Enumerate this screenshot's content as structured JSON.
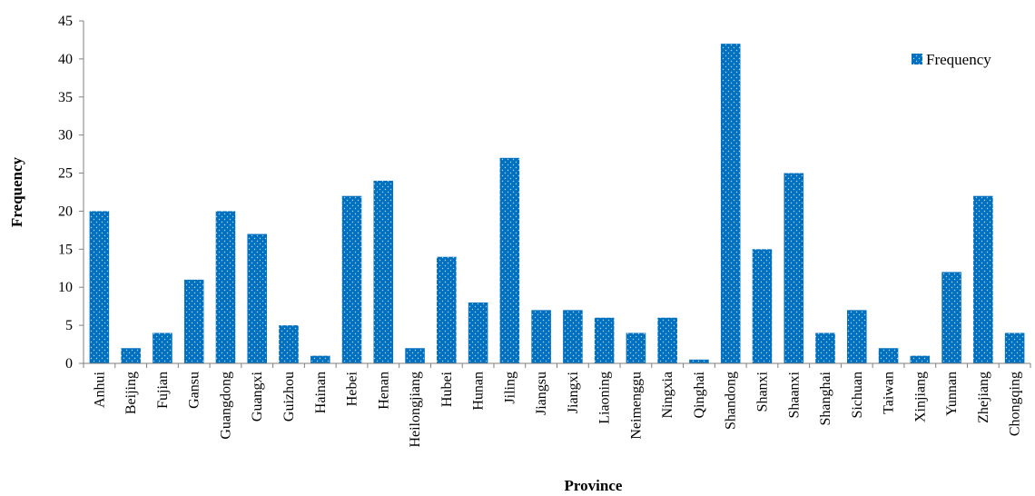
{
  "chart_data": {
    "type": "bar",
    "title": "",
    "xlabel": "Province",
    "ylabel": "Frequency",
    "ylim": [
      0,
      45
    ],
    "yticks": [
      0,
      5,
      10,
      15,
      20,
      25,
      30,
      35,
      40,
      45
    ],
    "grid": false,
    "legend_position": "top-right",
    "bar_color": "#0070c0",
    "categories": [
      "Anhui",
      "Beijing",
      "Fujian",
      "Gansu",
      "Guangdong",
      "Guangxi",
      "Guizhou",
      "Hainan",
      "Hebei",
      "Henan",
      "Heilongjiang",
      "Hubei",
      "Hunan",
      "Jiling",
      "Jiangsu",
      "Jiangxi",
      "Liaoning",
      "Neimenggu",
      "Ningxia",
      "Qinghai",
      "Shandong",
      "Shanxi",
      "Shaanxi",
      "Shanghai",
      "Sichuan",
      "Taiwan",
      "Xinjiang",
      "Yunnan",
      "Zhejiang",
      "Chongqing"
    ],
    "series": [
      {
        "name": "Frequency",
        "values": [
          20,
          2,
          4,
          11,
          20,
          17,
          5,
          1,
          22,
          24,
          2,
          14,
          8,
          27,
          7,
          7,
          6,
          4,
          6,
          0.5,
          42,
          15,
          25,
          4,
          7,
          2,
          1,
          12,
          22,
          4
        ]
      }
    ]
  }
}
